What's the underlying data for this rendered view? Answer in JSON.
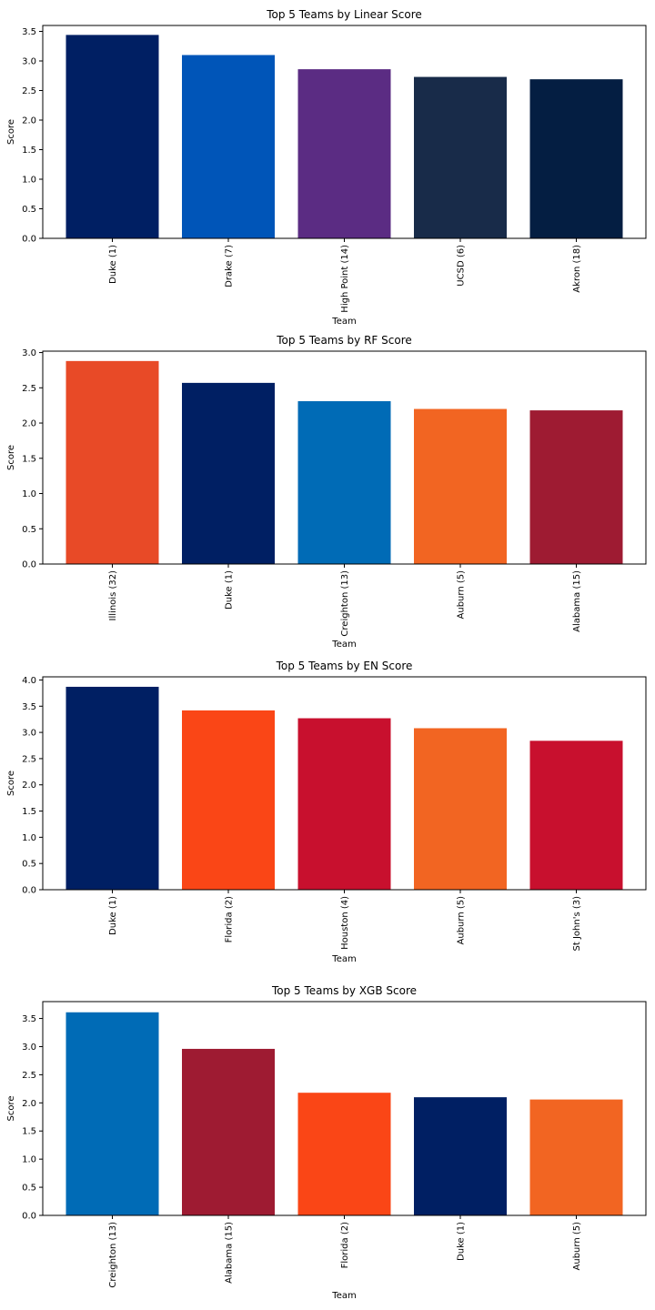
{
  "chart_data": [
    {
      "type": "bar",
      "title": "Top 5 Teams by Linear Score",
      "xlabel": "Team",
      "ylabel": "Score",
      "ylim": [
        0,
        3.6
      ],
      "yticks": [
        "0.0",
        "0.5",
        "1.0",
        "1.5",
        "2.0",
        "2.5",
        "3.0",
        "3.5"
      ],
      "categories": [
        "Duke (1)",
        "Drake (7)",
        "High Point (14)",
        "UCSD (6)",
        "Akron (18)"
      ],
      "values": [
        3.44,
        3.1,
        2.86,
        2.73,
        2.69
      ],
      "colors": [
        "#001f63",
        "#0055b8",
        "#5b2c83",
        "#182b49",
        "#041e42"
      ]
    },
    {
      "type": "bar",
      "title": "Top 5 Teams by RF Score",
      "xlabel": "Team",
      "ylabel": "Score",
      "ylim": [
        0,
        3.02
      ],
      "yticks": [
        "0.0",
        "0.5",
        "1.0",
        "1.5",
        "2.0",
        "2.5",
        "3.0"
      ],
      "categories": [
        "Illinois (32)",
        "Duke (1)",
        "Creighton (13)",
        "Auburn (5)",
        "Alabama (15)"
      ],
      "values": [
        2.88,
        2.57,
        2.31,
        2.2,
        2.18
      ],
      "colors": [
        "#e84a27",
        "#001f63",
        "#006bb6",
        "#f26522",
        "#9e1b32"
      ]
    },
    {
      "type": "bar",
      "title": "Top 5 Teams by EN Score",
      "xlabel": "Team",
      "ylabel": "Score",
      "ylim": [
        0,
        4.06
      ],
      "yticks": [
        "0.0",
        "0.5",
        "1.0",
        "1.5",
        "2.0",
        "2.5",
        "3.0",
        "3.5",
        "4.0"
      ],
      "categories": [
        "Duke (1)",
        "Florida (2)",
        "Houston (4)",
        "Auburn (5)",
        "St John's (3)"
      ],
      "values": [
        3.87,
        3.42,
        3.27,
        3.08,
        2.84
      ],
      "colors": [
        "#001f63",
        "#fa4616",
        "#c8102e",
        "#f26522",
        "#c8102e"
      ]
    },
    {
      "type": "bar",
      "title": "Top 5 Teams by XGB Score",
      "xlabel": "Team",
      "ylabel": "Score",
      "ylim": [
        0,
        3.8
      ],
      "yticks": [
        "0.0",
        "0.5",
        "1.0",
        "1.5",
        "2.0",
        "2.5",
        "3.0",
        "3.5"
      ],
      "categories": [
        "Creighton (13)",
        "Alabama (15)",
        "Florida (2)",
        "Duke (1)",
        "Auburn (5)"
      ],
      "values": [
        3.61,
        2.96,
        2.18,
        2.1,
        2.06
      ],
      "colors": [
        "#006bb6",
        "#9e1b32",
        "#fa4616",
        "#001f63",
        "#f26522"
      ]
    }
  ]
}
